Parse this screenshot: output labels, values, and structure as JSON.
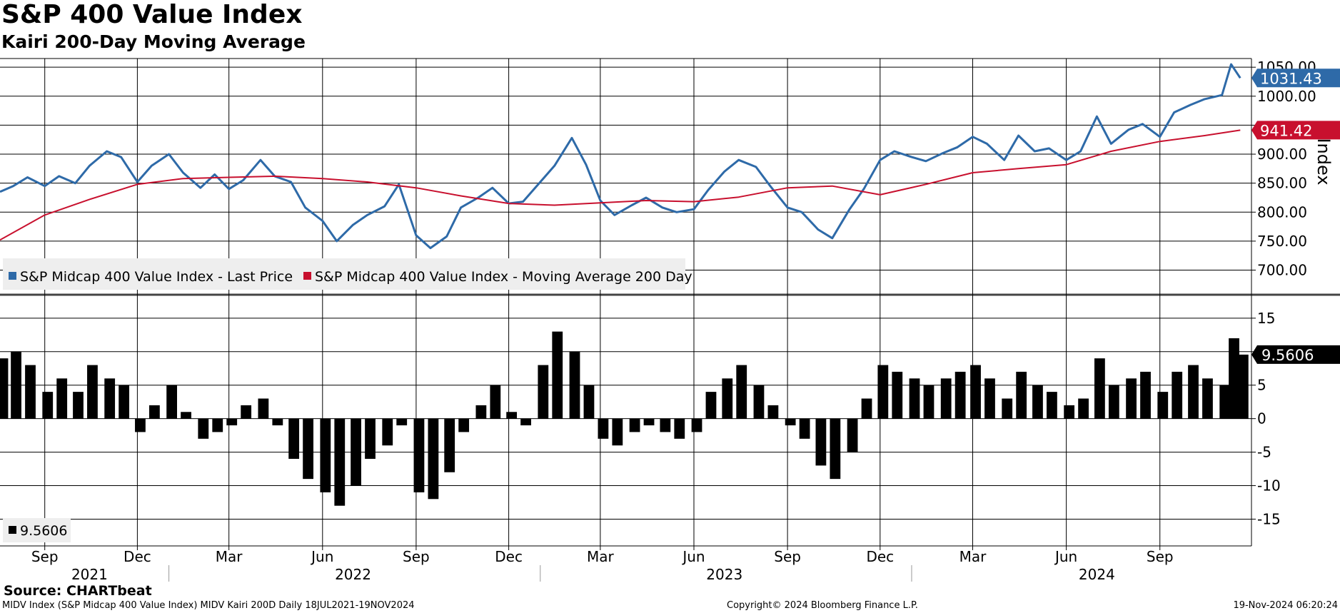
{
  "title": "S&P 400 Value Index",
  "subtitle": "Kairi 200-Day Moving Average",
  "source": "Source: CHARTbeat",
  "footer": {
    "left": "MIDV Index (S&P Midcap 400 Value Index) MIDV Kairi 200D  Daily 18JUL2021-19NOV2024",
    "center": "Copyright© 2024 Bloomberg Finance L.P.",
    "right": "19-Nov-2024 06:20:24"
  },
  "colors": {
    "price": "#2e6aa8",
    "ma": "#c8102e",
    "kairi": "#000000",
    "grid": "#000000"
  },
  "chart_data": [
    {
      "type": "line",
      "panel": "upper",
      "ylabel": "Index",
      "ylim": [
        660,
        1065
      ],
      "yticks": [
        700,
        750,
        800,
        850,
        900,
        950,
        1000,
        1050
      ],
      "ytick_labels": [
        "700.00",
        "750.00",
        "800.00",
        "850.00",
        "900.00",
        "",
        "1000.00",
        "1050.00"
      ],
      "grid": true,
      "legend_position": "bottom-left",
      "last_value_labels": [
        {
          "series": "price",
          "text": "1031.43",
          "value": 1031.43
        },
        {
          "series": "ma",
          "text": "941.42",
          "value": 941.42
        }
      ],
      "series": [
        {
          "key": "price",
          "name": "S&P Midcap 400 Value Index - Last Price",
          "x": [
            "2021-07-19",
            "2021-08-01",
            "2021-08-15",
            "2021-09-01",
            "2021-09-15",
            "2021-10-01",
            "2021-10-15",
            "2021-11-01",
            "2021-11-15",
            "2021-12-01",
            "2021-12-15",
            "2022-01-01",
            "2022-01-15",
            "2022-02-01",
            "2022-02-15",
            "2022-03-01",
            "2022-03-15",
            "2022-04-01",
            "2022-04-15",
            "2022-05-01",
            "2022-05-15",
            "2022-06-01",
            "2022-06-15",
            "2022-07-01",
            "2022-07-15",
            "2022-08-01",
            "2022-08-15",
            "2022-09-01",
            "2022-09-15",
            "2022-10-01",
            "2022-10-15",
            "2022-11-01",
            "2022-11-15",
            "2022-12-01",
            "2022-12-15",
            "2023-01-01",
            "2023-01-15",
            "2023-02-01",
            "2023-02-15",
            "2023-03-01",
            "2023-03-15",
            "2023-04-01",
            "2023-04-15",
            "2023-05-01",
            "2023-05-15",
            "2023-06-01",
            "2023-06-15",
            "2023-07-01",
            "2023-07-15",
            "2023-08-01",
            "2023-08-15",
            "2023-09-01",
            "2023-09-15",
            "2023-10-01",
            "2023-10-15",
            "2023-11-01",
            "2023-11-15",
            "2023-12-01",
            "2023-12-15",
            "2024-01-01",
            "2024-01-15",
            "2024-02-01",
            "2024-02-15",
            "2024-03-01",
            "2024-03-15",
            "2024-04-01",
            "2024-04-15",
            "2024-05-01",
            "2024-05-15",
            "2024-06-01",
            "2024-06-15",
            "2024-07-01",
            "2024-07-15",
            "2024-08-01",
            "2024-08-15",
            "2024-09-01",
            "2024-09-15",
            "2024-10-01",
            "2024-10-15",
            "2024-11-01",
            "2024-11-10",
            "2024-11-19"
          ],
          "values": [
            835,
            845,
            860,
            845,
            862,
            850,
            880,
            905,
            895,
            852,
            880,
            900,
            868,
            842,
            865,
            840,
            855,
            890,
            862,
            852,
            808,
            785,
            750,
            778,
            795,
            810,
            848,
            760,
            738,
            758,
            808,
            825,
            842,
            815,
            818,
            852,
            880,
            928,
            882,
            820,
            795,
            812,
            825,
            808,
            800,
            805,
            838,
            870,
            890,
            878,
            845,
            808,
            800,
            770,
            755,
            805,
            840,
            890,
            905,
            895,
            888,
            902,
            912,
            930,
            918,
            890,
            932,
            905,
            910,
            890,
            905,
            965,
            918,
            942,
            952,
            930,
            972,
            985,
            995,
            1002,
            1055,
            1031.43
          ]
        },
        {
          "key": "ma",
          "name": "S&P Midcap 400 Value Index - Moving Average 200 Day",
          "x": [
            "2021-07-19",
            "2021-09-01",
            "2021-10-15",
            "2021-12-01",
            "2022-01-15",
            "2022-03-01",
            "2022-04-15",
            "2022-06-01",
            "2022-07-15",
            "2022-09-01",
            "2022-10-15",
            "2022-12-01",
            "2023-01-15",
            "2023-03-01",
            "2023-04-15",
            "2023-06-01",
            "2023-07-15",
            "2023-09-01",
            "2023-10-15",
            "2023-12-01",
            "2024-01-15",
            "2024-03-01",
            "2024-04-15",
            "2024-06-01",
            "2024-07-15",
            "2024-09-01",
            "2024-10-15",
            "2024-11-19"
          ],
          "values": [
            752,
            795,
            822,
            848,
            858,
            860,
            862,
            858,
            852,
            842,
            828,
            815,
            812,
            816,
            820,
            818,
            826,
            842,
            845,
            830,
            848,
            868,
            875,
            882,
            905,
            922,
            932,
            941.42
          ]
        }
      ]
    },
    {
      "type": "bar",
      "panel": "lower",
      "ylim": [
        -19,
        18.5
      ],
      "yticks": [
        -15,
        -10,
        -5,
        0,
        5,
        10,
        15
      ],
      "ytick_labels": [
        "-15",
        "-10",
        "-5",
        "0",
        "5",
        "10",
        "15"
      ],
      "grid": true,
      "legend_position": "bottom-left",
      "last_value_label": {
        "text": "9.5606",
        "value": 9.5606
      },
      "series": [
        {
          "key": "kairi",
          "name": "9.5606",
          "x": [
            "2021-07-19",
            "2021-08-01",
            "2021-08-15",
            "2021-09-01",
            "2021-09-15",
            "2021-10-01",
            "2021-10-15",
            "2021-11-01",
            "2021-11-15",
            "2021-12-01",
            "2021-12-15",
            "2022-01-01",
            "2022-01-15",
            "2022-02-01",
            "2022-02-15",
            "2022-03-01",
            "2022-03-15",
            "2022-04-01",
            "2022-04-15",
            "2022-05-01",
            "2022-05-15",
            "2022-06-01",
            "2022-06-15",
            "2022-07-01",
            "2022-07-15",
            "2022-08-01",
            "2022-08-15",
            "2022-09-01",
            "2022-09-15",
            "2022-10-01",
            "2022-10-15",
            "2022-11-01",
            "2022-11-15",
            "2022-12-01",
            "2022-12-15",
            "2023-01-01",
            "2023-01-15",
            "2023-02-01",
            "2023-02-15",
            "2023-03-01",
            "2023-03-15",
            "2023-04-01",
            "2023-04-15",
            "2023-05-01",
            "2023-05-15",
            "2023-06-01",
            "2023-06-15",
            "2023-07-01",
            "2023-07-15",
            "2023-08-01",
            "2023-08-15",
            "2023-09-01",
            "2023-09-15",
            "2023-10-01",
            "2023-10-15",
            "2023-11-01",
            "2023-11-15",
            "2023-12-01",
            "2023-12-15",
            "2024-01-01",
            "2024-01-15",
            "2024-02-01",
            "2024-02-15",
            "2024-03-01",
            "2024-03-15",
            "2024-04-01",
            "2024-04-15",
            "2024-05-01",
            "2024-05-15",
            "2024-06-01",
            "2024-06-15",
            "2024-07-01",
            "2024-07-15",
            "2024-08-01",
            "2024-08-15",
            "2024-09-01",
            "2024-09-15",
            "2024-10-01",
            "2024-10-15",
            "2024-11-01",
            "2024-11-10",
            "2024-11-19"
          ],
          "values": [
            9,
            10,
            8,
            4,
            6,
            4,
            8,
            6,
            5,
            -2,
            2,
            5,
            1,
            -3,
            -2,
            -1,
            2,
            3,
            -1,
            -6,
            -9,
            -11,
            -13,
            -10,
            -6,
            -4,
            -1,
            -11,
            -12,
            -8,
            -2,
            2,
            5,
            1,
            -1,
            8,
            13,
            10,
            5,
            -3,
            -4,
            -2,
            -1,
            -2,
            -3,
            -2,
            4,
            6,
            8,
            5,
            2,
            -1,
            -3,
            -7,
            -9,
            -5,
            3,
            8,
            7,
            6,
            5,
            6,
            7,
            8,
            6,
            3,
            7,
            5,
            4,
            2,
            3,
            9,
            5,
            6,
            7,
            4,
            7,
            8,
            6,
            5,
            12,
            9.5606
          ]
        }
      ]
    }
  ],
  "xaxis": {
    "month_ticks": [
      {
        "label": "Sep",
        "date": "2021-09-01"
      },
      {
        "label": "Dec",
        "date": "2021-12-01"
      },
      {
        "label": "Mar",
        "date": "2022-03-01"
      },
      {
        "label": "Jun",
        "date": "2022-06-01"
      },
      {
        "label": "Sep",
        "date": "2022-09-01"
      },
      {
        "label": "Dec",
        "date": "2022-12-01"
      },
      {
        "label": "Mar",
        "date": "2023-03-01"
      },
      {
        "label": "Jun",
        "date": "2023-06-01"
      },
      {
        "label": "Sep",
        "date": "2023-09-01"
      },
      {
        "label": "Dec",
        "date": "2023-12-01"
      },
      {
        "label": "Mar",
        "date": "2024-03-01"
      },
      {
        "label": "Jun",
        "date": "2024-06-01"
      },
      {
        "label": "Sep",
        "date": "2024-09-01"
      }
    ],
    "years": [
      {
        "label": "2021",
        "date": "2021-10-15"
      },
      {
        "label": "2022",
        "date": "2022-07-01"
      },
      {
        "label": "2023",
        "date": "2023-07-01"
      },
      {
        "label": "2024",
        "date": "2024-07-01"
      }
    ],
    "year_boundaries": [
      "2022-01-01",
      "2023-01-01",
      "2024-01-01"
    ],
    "range": [
      "2021-07-19",
      "2024-11-30"
    ]
  }
}
